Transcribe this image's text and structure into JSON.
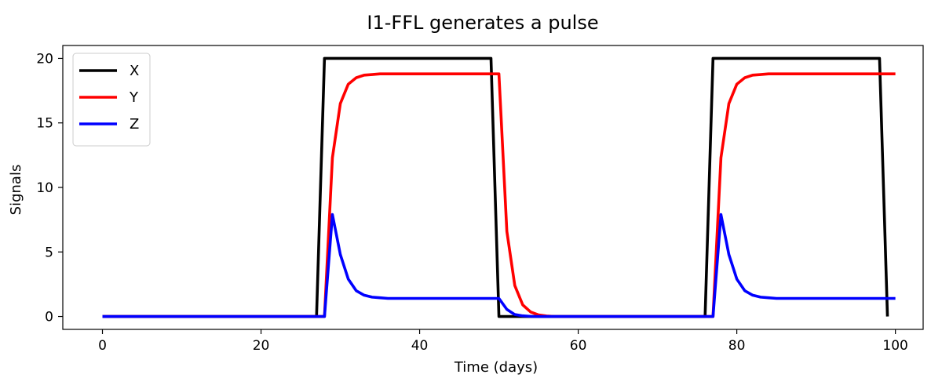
{
  "chart_data": {
    "type": "line",
    "title": "I1-FFL generates a pulse",
    "xlabel": "Time (days)",
    "ylabel": "Signals",
    "xlim": [
      -5,
      103.5
    ],
    "ylim": [
      -1,
      21
    ],
    "xticks": [
      0,
      20,
      40,
      60,
      80,
      100
    ],
    "xtick_labels": [
      "0",
      "20",
      "40",
      "60",
      "80",
      "100"
    ],
    "yticks": [
      0,
      5,
      10,
      15,
      20
    ],
    "ytick_labels": [
      "0",
      "5",
      "10",
      "15",
      "20"
    ],
    "grid": false,
    "legend": "top-left",
    "series": [
      {
        "name": "X",
        "color": "#000000",
        "x": [
          0,
          27,
          28,
          49,
          50,
          76,
          77,
          98,
          99
        ],
        "y": [
          0,
          0,
          20,
          20,
          0,
          0,
          20,
          20,
          0
        ]
      },
      {
        "name": "Y",
        "color": "#ff0000",
        "x": [
          0,
          28,
          29,
          30,
          31,
          32,
          33,
          34,
          35,
          36,
          38,
          45,
          50,
          51,
          52,
          53,
          54,
          55,
          56,
          57,
          77,
          78,
          79,
          80,
          81,
          82,
          83,
          84,
          85,
          87,
          90,
          100
        ],
        "y": [
          0,
          0,
          12.3,
          16.5,
          18.0,
          18.5,
          18.7,
          18.75,
          18.8,
          18.8,
          18.8,
          18.8,
          18.8,
          6.6,
          2.4,
          0.9,
          0.35,
          0.12,
          0.04,
          0,
          0,
          12.3,
          16.5,
          18.0,
          18.5,
          18.7,
          18.75,
          18.8,
          18.8,
          18.8,
          18.8,
          18.8
        ]
      },
      {
        "name": "Z",
        "color": "#0000ff",
        "x": [
          0,
          28,
          29,
          30,
          31,
          32,
          33,
          34,
          35,
          36,
          38,
          45,
          50,
          51,
          52,
          53,
          54,
          55,
          56,
          77,
          78,
          79,
          80,
          81,
          82,
          83,
          84,
          85,
          87,
          90,
          100
        ],
        "y": [
          0,
          0,
          7.9,
          4.8,
          2.9,
          2.0,
          1.65,
          1.5,
          1.45,
          1.4,
          1.4,
          1.4,
          1.4,
          0.55,
          0.15,
          0.05,
          0.01,
          0,
          0,
          0,
          7.9,
          4.8,
          2.9,
          2.0,
          1.65,
          1.5,
          1.45,
          1.4,
          1.4,
          1.4,
          1.4
        ]
      }
    ]
  }
}
